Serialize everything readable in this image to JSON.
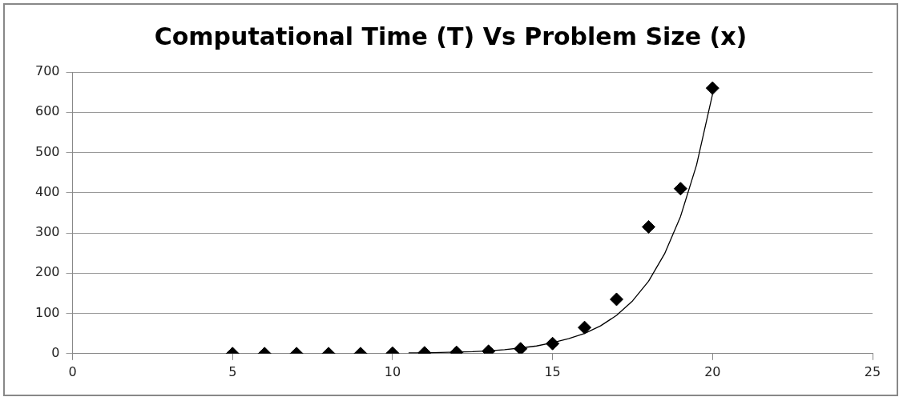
{
  "chart_data": {
    "type": "scatter",
    "title": "Computational Time (T) Vs Problem Size (x)",
    "xlim": [
      0,
      25
    ],
    "xticks": [
      0,
      5,
      10,
      15,
      20,
      25
    ],
    "ylim": [
      0,
      700
    ],
    "yticks": [
      0,
      100,
      200,
      300,
      400,
      500,
      600,
      700
    ],
    "grid": "y",
    "legend": false,
    "series": [
      {
        "type": "scatter",
        "marker": "diamond",
        "color": "#000000",
        "x": [
          5,
          6,
          7,
          8,
          9,
          10,
          11,
          12,
          13,
          14,
          15,
          16,
          17,
          18,
          19,
          20
        ],
        "values": [
          0,
          0,
          0,
          0,
          0,
          1,
          2,
          3,
          6,
          12,
          25,
          65,
          135,
          315,
          410,
          660
        ]
      },
      {
        "type": "line",
        "marker": "none",
        "line_style": "solid",
        "color": "#000000",
        "x": [
          10.5,
          11,
          11.5,
          12,
          12.5,
          13,
          13.5,
          14,
          14.5,
          15,
          15.5,
          16,
          16.5,
          17,
          17.5,
          18,
          18.5,
          19,
          19.5,
          20
        ],
        "values": [
          2,
          2,
          3,
          4,
          5,
          7,
          10,
          14,
          19,
          27,
          37,
          50,
          69,
          95,
          131,
          180,
          248,
          341,
          469,
          645
        ]
      }
    ]
  }
}
